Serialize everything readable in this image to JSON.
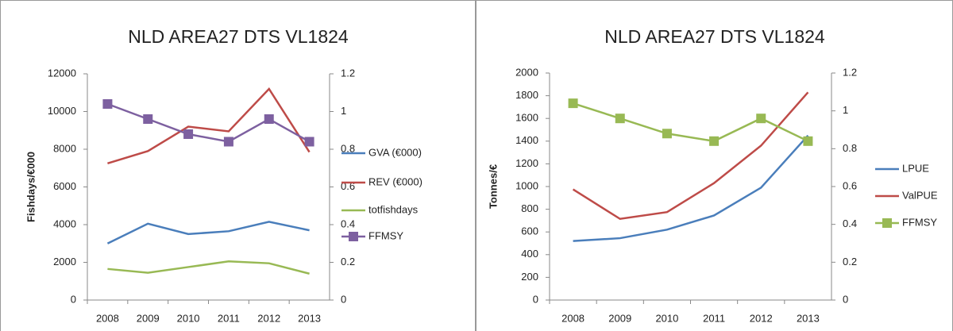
{
  "chart_data": [
    {
      "type": "line",
      "title": "NLD AREA27 DTS VL1824",
      "y_label": "Fishdays/€000",
      "categories": [
        "2008",
        "2009",
        "2010",
        "2011",
        "2012",
        "2013"
      ],
      "ylim": [
        0,
        12000
      ],
      "yticks": [
        0,
        2000,
        4000,
        6000,
        8000,
        10000,
        12000
      ],
      "y2lim": [
        0,
        1.2
      ],
      "y2ticks": [
        0,
        0.2,
        0.4,
        0.6,
        0.8,
        1,
        1.2
      ],
      "grid": false,
      "legend": "right",
      "series": [
        {
          "name": "GVA (€000)",
          "color": "#4a7ebb",
          "values": [
            3000,
            4050,
            3500,
            3650,
            4150,
            3700
          ]
        },
        {
          "name": "REV (€000)",
          "color": "#be4b48",
          "values": [
            7250,
            7900,
            9200,
            8950,
            11200,
            7850
          ]
        },
        {
          "name": "totfishdays",
          "color": "#98b954",
          "values": [
            1650,
            1450,
            1750,
            2050,
            1950,
            1400
          ]
        },
        {
          "name": "FFMSY",
          "color": "#7d60a0",
          "axis": "y2",
          "marker": "square",
          "values": [
            1.04,
            0.96,
            0.88,
            0.84,
            0.96,
            0.84
          ]
        }
      ]
    },
    {
      "type": "line",
      "title": "NLD AREA27 DTS VL1824",
      "y_label": "Tonnes/€",
      "categories": [
        "2008",
        "2009",
        "2010",
        "2011",
        "2012",
        "2013"
      ],
      "ylim": [
        0,
        2000
      ],
      "yticks": [
        0,
        200,
        400,
        600,
        800,
        1000,
        1200,
        1400,
        1600,
        1800,
        2000
      ],
      "y2lim": [
        0,
        1.2
      ],
      "y2ticks": [
        0,
        0.2,
        0.4,
        0.6,
        0.8,
        1,
        1.2
      ],
      "grid": false,
      "legend": "right",
      "series": [
        {
          "name": "LPUE",
          "color": "#4a7ebb",
          "values": [
            520,
            545,
            620,
            745,
            990,
            1450
          ]
        },
        {
          "name": "ValPUE",
          "color": "#be4b48",
          "values": [
            975,
            715,
            775,
            1030,
            1360,
            1830
          ]
        },
        {
          "name": "FFMSY",
          "color": "#98b954",
          "axis": "y2",
          "marker": "square",
          "values": [
            1.04,
            0.96,
            0.88,
            0.84,
            0.96,
            0.84
          ]
        }
      ]
    }
  ]
}
